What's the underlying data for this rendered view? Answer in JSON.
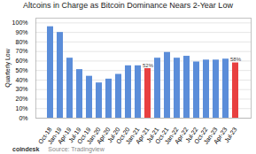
{
  "chart_data": {
    "type": "bar",
    "title": "Altcoins in Charge as Bitcoin Dominance Nears 2-Year Low",
    "ylabel": "Quarterly Low",
    "categories": [
      "Oct-18",
      "Jan-19",
      "Apr-19",
      "Jul-19",
      "Oct-19",
      "Jan-20",
      "Apr-20",
      "Jul-20",
      "Oct-20",
      "Jan-21",
      "Apr-21",
      "Jul-21",
      "Oct-21",
      "Jan-22",
      "Apr-22",
      "Jul-22",
      "Oct-22",
      "Jan-23",
      "Apr-23",
      "Jul-23"
    ],
    "values": [
      96,
      90,
      63,
      51,
      44,
      37,
      41,
      46,
      55,
      55,
      52,
      63,
      69,
      63,
      65,
      59,
      61,
      61,
      62,
      58
    ],
    "colors": [
      "#5b8dd9",
      "#5b8dd9",
      "#5b8dd9",
      "#5b8dd9",
      "#5b8dd9",
      "#5b8dd9",
      "#5b8dd9",
      "#5b8dd9",
      "#5b8dd9",
      "#5b8dd9",
      "#e84040",
      "#5b8dd9",
      "#5b8dd9",
      "#5b8dd9",
      "#5b8dd9",
      "#5b8dd9",
      "#5b8dd9",
      "#5b8dd9",
      "#5b8dd9",
      "#e84040"
    ],
    "ylim": [
      0,
      105
    ],
    "yticks": [
      {
        "value": 0,
        "label": "0%"
      },
      {
        "value": 10,
        "label": "10%"
      },
      {
        "value": 20,
        "label": "20%"
      },
      {
        "value": 30,
        "label": "30%"
      },
      {
        "value": 40,
        "label": "40%"
      },
      {
        "value": 50,
        "label": "50%"
      },
      {
        "value": 60,
        "label": "60%"
      },
      {
        "value": 70,
        "label": "70%"
      },
      {
        "value": 80,
        "label": "80%"
      },
      {
        "value": 90,
        "label": "90%"
      },
      {
        "value": 100,
        "label": "100%"
      }
    ],
    "grid": true,
    "annotations": [
      {
        "text": "52%",
        "x": "Apr-21",
        "y": 52
      },
      {
        "text": "58%",
        "x": "Jul-23",
        "y": 58
      },
      {
        "text": "coindesk"
      },
      {
        "text": "Source: Tradingview"
      }
    ]
  }
}
